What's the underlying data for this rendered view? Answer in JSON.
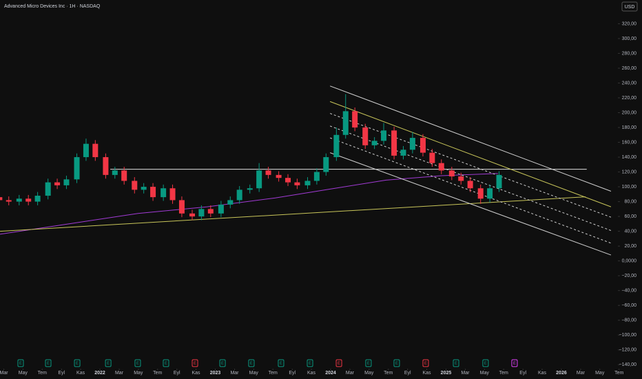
{
  "chart_data": {
    "type": "candlestick",
    "title": "Advanced Micro Devices Inc · 1H · NASDAQ",
    "currency": "USD",
    "up_color": "#089981",
    "down_color": "#f23645",
    "x": [
      2021.13,
      2021.21,
      2021.3,
      2021.38,
      2021.46,
      2021.55,
      2021.63,
      2021.71,
      2021.8,
      2021.88,
      2021.96,
      2022.05,
      2022.13,
      2022.21,
      2022.3,
      2022.38,
      2022.46,
      2022.55,
      2022.63,
      2022.71,
      2022.8,
      2022.88,
      2022.96,
      2023.05,
      2023.13,
      2023.21,
      2023.3,
      2023.38,
      2023.46,
      2023.55,
      2023.63,
      2023.71,
      2023.8,
      2023.88,
      2023.96,
      2024.05,
      2024.13,
      2024.21,
      2024.3,
      2024.38,
      2024.46,
      2024.55,
      2024.63,
      2024.71,
      2024.8,
      2024.88,
      2024.96,
      2025.05,
      2025.13,
      2025.21,
      2025.3,
      2025.38,
      2025.46
    ],
    "open": [
      86,
      82,
      80,
      84,
      80,
      88,
      106,
      102,
      110,
      140,
      158,
      140,
      116,
      122,
      108,
      96,
      100,
      86,
      98,
      82,
      64,
      60,
      70,
      64,
      76,
      82,
      96,
      98,
      122,
      116,
      112,
      106,
      102,
      108,
      120,
      140,
      170,
      202,
      180,
      156,
      162,
      176,
      142,
      150,
      166,
      146,
      132,
      122,
      114,
      108,
      98,
      84,
      98
    ],
    "high": [
      91,
      87,
      89,
      89,
      93,
      111,
      111,
      115,
      145,
      165,
      163,
      145,
      127,
      127,
      113,
      105,
      105,
      103,
      103,
      87,
      69,
      75,
      75,
      81,
      87,
      101,
      103,
      132,
      127,
      121,
      117,
      111,
      113,
      125,
      145,
      180,
      225,
      207,
      185,
      167,
      186,
      181,
      155,
      174,
      171,
      151,
      137,
      127,
      119,
      113,
      103,
      103,
      121
    ],
    "low": [
      77,
      75,
      75,
      75,
      75,
      83,
      97,
      97,
      105,
      135,
      135,
      111,
      111,
      103,
      91,
      91,
      81,
      81,
      77,
      59,
      55,
      55,
      59,
      59,
      71,
      77,
      91,
      93,
      111,
      107,
      101,
      97,
      97,
      103,
      115,
      135,
      165,
      175,
      151,
      151,
      157,
      137,
      137,
      145,
      141,
      127,
      117,
      109,
      103,
      93,
      77,
      79,
      93
    ],
    "close": [
      82,
      80,
      84,
      80,
      88,
      106,
      102,
      110,
      140,
      158,
      140,
      116,
      122,
      108,
      96,
      100,
      86,
      98,
      82,
      64,
      60,
      70,
      64,
      76,
      82,
      96,
      98,
      122,
      116,
      112,
      106,
      102,
      108,
      120,
      140,
      170,
      202,
      180,
      156,
      162,
      176,
      142,
      150,
      166,
      146,
      132,
      122,
      114,
      108,
      98,
      84,
      98,
      116
    ],
    "lines": [
      {
        "x": [
          2021.134,
          2021.73,
          2022.33,
          2022.93,
          2023.52,
          2024.0,
          2024.48,
          2024.96,
          2025.45
        ],
        "y": [
          36,
          50,
          64,
          73,
          85,
          97,
          109,
          115,
          118
        ],
        "color": "#a23bd6",
        "dashed": false
      },
      {
        "x": [
          2021.134,
          2026.21
        ],
        "y": [
          40,
          86.5
        ],
        "color": "#c9c65a",
        "dashed": false
      },
      {
        "x": [
          2022.09,
          2026.22
        ],
        "y": [
          123.7,
          123.7
        ],
        "color": "#e0e0e0",
        "dashed": false
      },
      {
        "x": [
          2023.995,
          2026.43
        ],
        "y": [
          236,
          94
        ],
        "color": "#d0d0d0",
        "dashed": false
      },
      {
        "x": [
          2023.995,
          2026.43
        ],
        "y": [
          215,
          73
        ],
        "color": "#c9c65a",
        "dashed": false
      },
      {
        "x": [
          2023.995,
          2026.43
        ],
        "y": [
          199,
          59
        ],
        "color": "#d0d0d0",
        "dashed": true
      },
      {
        "x": [
          2023.995,
          2026.43
        ],
        "y": [
          182,
          41
        ],
        "color": "#d0d0d0",
        "dashed": true
      },
      {
        "x": [
          2023.995,
          2026.43
        ],
        "y": [
          166,
          24
        ],
        "color": "#d0d0d0",
        "dashed": true
      },
      {
        "x": [
          2023.995,
          2026.43
        ],
        "y": [
          146,
          8
        ],
        "color": "#d0d0d0",
        "dashed": false
      }
    ],
    "events": {
      "label": "E",
      "x": [
        2021.313,
        2021.552,
        2021.803,
        2022.072,
        2022.328,
        2022.573,
        2022.824,
        2023.063,
        2023.313,
        2023.57,
        2023.821,
        2024.072,
        2024.328,
        2024.573,
        2024.824,
        2025.087,
        2025.343,
        2025.594
      ],
      "colors": [
        "#089981",
        "#089981",
        "#089981",
        "#089981",
        "#089981",
        "#089981",
        "#f23645",
        "#089981",
        "#089981",
        "#089981",
        "#089981",
        "#f23645",
        "#089981",
        "#089981",
        "#f23645",
        "#089981",
        "#089981",
        "#e040fb"
      ]
    },
    "xlim": [
      2021.134,
      2026.478
    ],
    "ylim": [
      -150,
      352
    ],
    "xticks": [
      {
        "value": 2021.167,
        "label": "Mar"
      },
      {
        "value": 2021.333,
        "label": "May"
      },
      {
        "value": 2021.5,
        "label": "Tem"
      },
      {
        "value": 2021.667,
        "label": "Eyl"
      },
      {
        "value": 2021.833,
        "label": "Kas"
      },
      2022,
      {
        "value": 2022.167,
        "label": "Mar"
      },
      {
        "value": 2022.333,
        "label": "May"
      },
      {
        "value": 2022.5,
        "label": "Tem"
      },
      {
        "value": 2022.667,
        "label": "Eyl"
      },
      {
        "value": 2022.833,
        "label": "Kas"
      },
      2023,
      {
        "value": 2023.167,
        "label": "Mar"
      },
      {
        "value": 2023.333,
        "label": "May"
      },
      {
        "value": 2023.5,
        "label": "Tem"
      },
      {
        "value": 2023.667,
        "label": "Eyl"
      },
      {
        "value": 2023.833,
        "label": "Kas"
      },
      2024,
      {
        "value": 2024.167,
        "label": "Mar"
      },
      {
        "value": 2024.333,
        "label": "May"
      },
      {
        "value": 2024.5,
        "label": "Tem"
      },
      {
        "value": 2024.667,
        "label": "Eyl"
      },
      {
        "value": 2024.833,
        "label": "Kas"
      },
      2025,
      {
        "value": 2025.167,
        "label": "Mar"
      },
      {
        "value": 2025.333,
        "label": "May"
      },
      {
        "value": 2025.5,
        "label": "Tem"
      },
      {
        "value": 2025.667,
        "label": "Eyl"
      },
      {
        "value": 2025.833,
        "label": "Kas"
      },
      2026,
      {
        "value": 2026.167,
        "label": "Mar"
      },
      {
        "value": 2026.333,
        "label": "May"
      },
      {
        "value": 2026.5,
        "label": "Tem"
      }
    ],
    "yticks": [
      {
        "value": 320,
        "label": "320,00"
      },
      {
        "value": 300,
        "label": "300,00"
      },
      {
        "value": 280,
        "label": "280,00"
      },
      {
        "value": 260,
        "label": "260,00"
      },
      {
        "value": 240,
        "label": "240,00"
      },
      {
        "value": 220,
        "label": "220,00"
      },
      {
        "value": 200,
        "label": "200,00"
      },
      {
        "value": 180,
        "label": "180,00"
      },
      {
        "value": 160,
        "label": "160,00"
      },
      {
        "value": 140,
        "label": "140,00"
      },
      {
        "value": 120,
        "label": "120,00"
      },
      {
        "value": 100,
        "label": "100,00"
      },
      {
        "value": 80,
        "label": "80,00"
      },
      {
        "value": 60,
        "label": "60,00"
      },
      {
        "value": 40,
        "label": "40,00"
      },
      {
        "value": 20,
        "label": "20,00"
      },
      {
        "value": 0,
        "label": "0,0000"
      },
      {
        "value": -20,
        "label": "−20,00"
      },
      {
        "value": -40,
        "label": "−40,00"
      },
      {
        "value": -60,
        "label": "−60,00"
      },
      {
        "value": -80,
        "label": "−80,00"
      },
      {
        "value": -100,
        "label": "−100,00"
      },
      {
        "value": -120,
        "label": "−120,00"
      },
      {
        "value": -140,
        "label": "−140,00"
      }
    ]
  }
}
